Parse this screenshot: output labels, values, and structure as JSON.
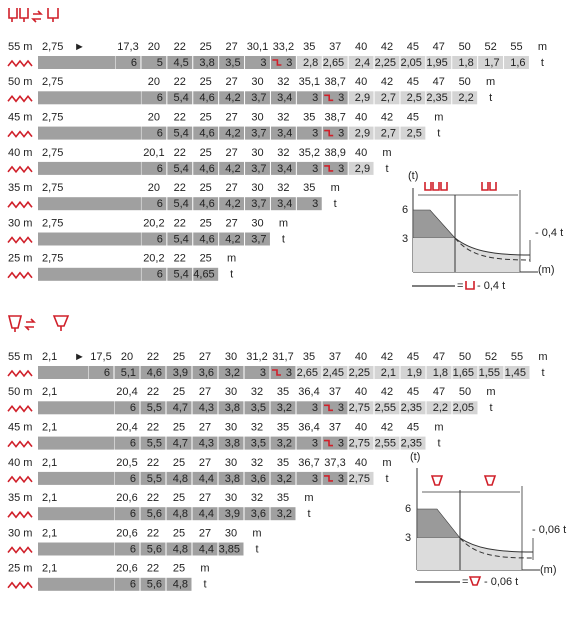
{
  "sections": [
    {
      "rows": [
        {
          "length": "55 m",
          "offset": "2,75",
          "arrow": "►",
          "radii": [
            "17,3",
            "20",
            "22",
            "25",
            "27",
            "30,1",
            "33,2",
            "35",
            "37",
            "40",
            "42",
            "45",
            "47",
            "50",
            "52",
            "55"
          ],
          "radius_unit": "m",
          "loads": [
            "6",
            "5",
            "4,5",
            "3,8",
            "3,5",
            "3",
            "3",
            "2,8",
            "2,65",
            "2,4",
            "2,25",
            "2,05",
            "1,95",
            "1,8",
            "1,7",
            "1,6"
          ],
          "load_unit": "t"
        },
        {
          "length": "50 m",
          "offset": "2,75",
          "radii": [
            "20",
            "22",
            "25",
            "27",
            "30",
            "32",
            "35,1",
            "38,7",
            "40",
            "42",
            "45",
            "47",
            "50"
          ],
          "radius_unit": "m",
          "loads": [
            "6",
            "5,4",
            "4,6",
            "4,2",
            "3,7",
            "3,4",
            "3",
            "3",
            "2,9",
            "2,7",
            "2,5",
            "2,35",
            "2,2"
          ],
          "load_unit": "t"
        },
        {
          "length": "45 m",
          "offset": "2,75",
          "radii": [
            "20",
            "22",
            "25",
            "27",
            "30",
            "32",
            "35",
            "38,7",
            "40",
            "42",
            "45"
          ],
          "radius_unit": "m",
          "loads": [
            "6",
            "5,4",
            "4,6",
            "4,2",
            "3,7",
            "3,4",
            "3",
            "3",
            "2,9",
            "2,7",
            "2,5"
          ],
          "load_unit": "t"
        },
        {
          "length": "40 m",
          "offset": "2,75",
          "radii": [
            "20,1",
            "22",
            "25",
            "27",
            "30",
            "32",
            "35,2",
            "38,9",
            "40"
          ],
          "radius_unit": "m",
          "loads": [
            "6",
            "5,4",
            "4,6",
            "4,2",
            "3,7",
            "3,4",
            "3",
            "3",
            "2,9"
          ],
          "load_unit": "t"
        },
        {
          "length": "35 m",
          "offset": "2,75",
          "radii": [
            "20",
            "22",
            "25",
            "27",
            "30",
            "32",
            "35"
          ],
          "radius_unit": "m",
          "loads": [
            "6",
            "5,4",
            "4,6",
            "4,2",
            "3,7",
            "3,4",
            "3"
          ],
          "load_unit": "t"
        },
        {
          "length": "30 m",
          "offset": "2,75",
          "radii": [
            "20,2",
            "22",
            "25",
            "27",
            "30"
          ],
          "radius_unit": "m",
          "loads": [
            "6",
            "5,4",
            "4,6",
            "4,2",
            "3,7"
          ],
          "load_unit": "t"
        },
        {
          "length": "25 m",
          "offset": "2,75",
          "radii": [
            "20,2",
            "22",
            "25"
          ],
          "radius_unit": "m",
          "loads": [
            "6",
            "5,4",
            "4,65"
          ],
          "load_unit": "t"
        }
      ],
      "diagram": {
        "y_label": "(t)",
        "y_ticks": [
          "6",
          "3"
        ],
        "x_label": "(m)",
        "deduction": "- 0,4 t",
        "legend_eq": "=",
        "legend": "- 0,4 t"
      }
    },
    {
      "rows": [
        {
          "length": "55 m",
          "offset": "2,1",
          "arrow": "►",
          "radii": [
            "17,5",
            "20",
            "22",
            "25",
            "27",
            "30",
            "31,2",
            "31,7",
            "35",
            "37",
            "40",
            "42",
            "45",
            "47",
            "50",
            "52",
            "55"
          ],
          "radius_unit": "m",
          "loads": [
            "6",
            "5,1",
            "4,6",
            "3,9",
            "3,6",
            "3,2",
            "3",
            "3",
            "2,65",
            "2,45",
            "2,25",
            "2,1",
            "1,9",
            "1,8",
            "1,65",
            "1,55",
            "1,45"
          ],
          "load_unit": "t"
        },
        {
          "length": "50 m",
          "offset": "2,1",
          "radii": [
            "20,4",
            "22",
            "25",
            "27",
            "30",
            "32",
            "35",
            "36,4",
            "37",
            "40",
            "42",
            "45",
            "47",
            "50"
          ],
          "radius_unit": "m",
          "loads": [
            "6",
            "5,5",
            "4,7",
            "4,3",
            "3,8",
            "3,5",
            "3,2",
            "3",
            "3",
            "2,75",
            "2,55",
            "2,35",
            "2,2",
            "2,05"
          ],
          "load_unit": "t"
        },
        {
          "length": "45 m",
          "offset": "2,1",
          "radii": [
            "20,4",
            "22",
            "25",
            "27",
            "30",
            "32",
            "35",
            "36,4",
            "37",
            "40",
            "42",
            "45"
          ],
          "radius_unit": "m",
          "loads": [
            "6",
            "5,5",
            "4,7",
            "4,3",
            "3,8",
            "3,5",
            "3,2",
            "3",
            "3",
            "2,75",
            "2,55",
            "2,35"
          ],
          "load_unit": "t"
        },
        {
          "length": "40 m",
          "offset": "2,1",
          "radii": [
            "20,5",
            "22",
            "25",
            "27",
            "30",
            "32",
            "35",
            "36,7",
            "37,3",
            "40"
          ],
          "radius_unit": "m",
          "loads": [
            "6",
            "5,5",
            "4,8",
            "4,4",
            "3,8",
            "3,6",
            "3,2",
            "3",
            "3",
            "2,75"
          ],
          "load_unit": "t"
        },
        {
          "length": "35 m",
          "offset": "2,1",
          "radii": [
            "20,6",
            "22",
            "25",
            "27",
            "30",
            "32",
            "35"
          ],
          "radius_unit": "m",
          "loads": [
            "6",
            "5,6",
            "4,8",
            "4,4",
            "3,9",
            "3,6",
            "3,2"
          ],
          "load_unit": "t"
        },
        {
          "length": "30 m",
          "offset": "2,1",
          "radii": [
            "20,6",
            "22",
            "25",
            "27",
            "30"
          ],
          "radius_unit": "m",
          "loads": [
            "6",
            "5,6",
            "4,8",
            "4,4",
            "3,85"
          ],
          "load_unit": "t"
        },
        {
          "length": "25 m",
          "offset": "2,1",
          "radii": [
            "20,6",
            "22",
            "25"
          ],
          "radius_unit": "m",
          "loads": [
            "6",
            "5,6",
            "4,8"
          ],
          "load_unit": "t"
        }
      ],
      "diagram": {
        "y_label": "(t)",
        "y_ticks": [
          "6",
          "3"
        ],
        "x_label": "(m)",
        "deduction": "- 0,06 t",
        "legend_eq": "=",
        "legend": "- 0,06 t"
      }
    }
  ]
}
